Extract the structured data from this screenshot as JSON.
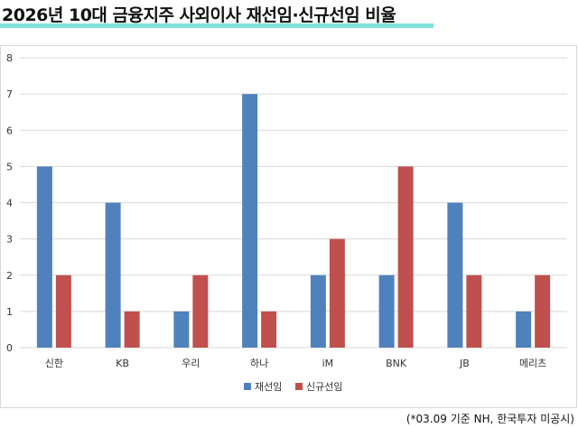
{
  "title": "2026년 10대 금융지주 사외이사 재선임·신규선임 비율",
  "source_note": "(*03.09 기준 NH, 한국투자 미공시)",
  "colors": {
    "accent_underline": "#7fe3d8",
    "series_1": "#4f81bd",
    "series_2": "#c0504d",
    "grid": "#d9d9d9"
  },
  "chart_data": {
    "type": "bar",
    "categories": [
      "신한",
      "KB",
      "우리",
      "하나",
      "iM",
      "BNK",
      "JB",
      "메리츠"
    ],
    "series": [
      {
        "name": "재선임",
        "values": [
          5,
          4,
          1,
          7,
          2,
          2,
          4,
          1
        ]
      },
      {
        "name": "신규선임",
        "values": [
          2,
          1,
          2,
          1,
          3,
          5,
          2,
          2
        ]
      }
    ],
    "yticks": [
      "0",
      "1",
      "2",
      "3",
      "4",
      "5",
      "6",
      "7",
      "8"
    ],
    "ylim": [
      0,
      8
    ],
    "grid": true,
    "legend_position": "bottom"
  }
}
